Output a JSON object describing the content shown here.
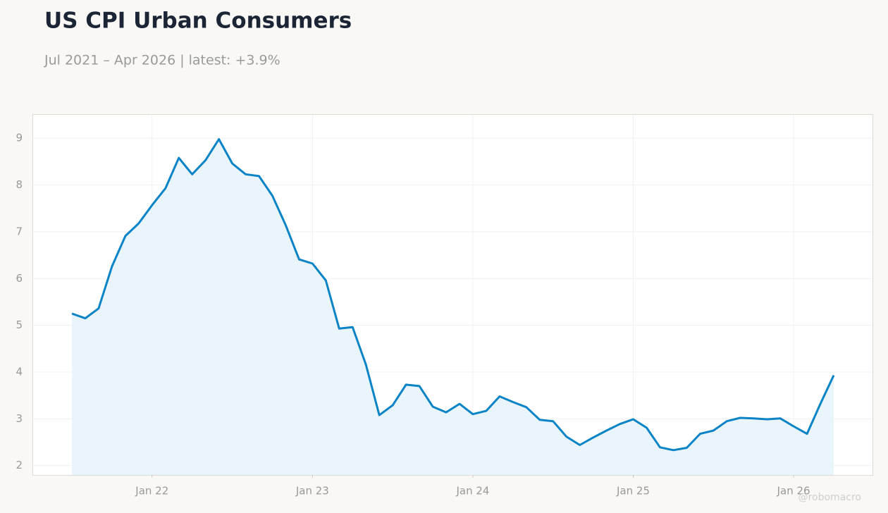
{
  "chart_data": {
    "type": "line",
    "title": "US CPI Urban Consumers",
    "subtitle": "Jul 2021 – Apr 2026 | latest: +3.9%",
    "watermark": "@robomacro",
    "color": "#0a84c6",
    "area_color": "#e9f4fb",
    "grid": true,
    "x": [
      "2021-07",
      "2021-08",
      "2021-09",
      "2021-10",
      "2021-11",
      "2021-12",
      "2022-01",
      "2022-02",
      "2022-03",
      "2022-04",
      "2022-05",
      "2022-06",
      "2022-07",
      "2022-08",
      "2022-09",
      "2022-10",
      "2022-11",
      "2022-12",
      "2023-01",
      "2023-02",
      "2023-03",
      "2023-04",
      "2023-05",
      "2023-06",
      "2023-07",
      "2023-08",
      "2023-09",
      "2023-10",
      "2023-11",
      "2023-12",
      "2024-01",
      "2024-02",
      "2024-03",
      "2024-04",
      "2024-05",
      "2024-06",
      "2024-07",
      "2024-08",
      "2024-09",
      "2024-10",
      "2024-11",
      "2024-12",
      "2025-01",
      "2025-02",
      "2025-03",
      "2025-04",
      "2025-05",
      "2025-06",
      "2025-07",
      "2025-08",
      "2025-09",
      "2025-10",
      "2025-11",
      "2025-12",
      "2026-01",
      "2026-02",
      "2026-03",
      "2026-04"
    ],
    "values": [
      5.25,
      5.15,
      5.36,
      6.26,
      6.91,
      7.18,
      7.57,
      7.93,
      8.58,
      8.23,
      8.53,
      8.98,
      8.46,
      8.23,
      8.19,
      7.77,
      7.14,
      6.41,
      6.32,
      5.96,
      4.93,
      4.96,
      4.16,
      3.08,
      3.29,
      3.73,
      3.7,
      3.26,
      3.14,
      3.32,
      3.1,
      3.17,
      3.48,
      3.36,
      3.25,
      2.98,
      2.95,
      2.62,
      2.44,
      2.6,
      2.75,
      2.89,
      2.99,
      2.81,
      2.39,
      2.33,
      2.38,
      2.68,
      2.75,
      2.95,
      3.02,
      3.01,
      2.99,
      3.01,
      2.84,
      2.68,
      3.32,
      3.93
    ],
    "ylim": [
      1.8,
      9.5
    ],
    "yticks": [
      2,
      3,
      4,
      5,
      6,
      7,
      8,
      9
    ],
    "xticks": [
      {
        "value": "2022-01",
        "label": "Jan 22"
      },
      {
        "value": "2023-01",
        "label": "Jan 23"
      },
      {
        "value": "2024-01",
        "label": "Jan 24"
      },
      {
        "value": "2025-01",
        "label": "Jan 25"
      },
      {
        "value": "2026-01",
        "label": "Jan 26"
      }
    ]
  }
}
